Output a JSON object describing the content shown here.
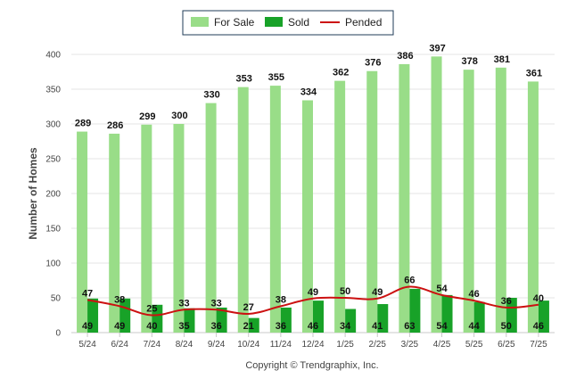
{
  "chart_data": {
    "type": "bar",
    "categories": [
      "5/24",
      "6/24",
      "7/24",
      "8/24",
      "9/24",
      "10/24",
      "11/24",
      "12/24",
      "1/25",
      "2/25",
      "3/25",
      "4/25",
      "5/25",
      "6/25",
      "7/25"
    ],
    "series": [
      {
        "name": "For Sale",
        "kind": "bar",
        "color": "#99dd88",
        "values": [
          289,
          286,
          299,
          300,
          330,
          353,
          355,
          334,
          362,
          376,
          386,
          397,
          378,
          381,
          361
        ]
      },
      {
        "name": "Sold",
        "kind": "bar",
        "color": "#18a228",
        "values": [
          49,
          49,
          40,
          35,
          36,
          21,
          36,
          46,
          34,
          41,
          63,
          54,
          44,
          50,
          46
        ]
      },
      {
        "name": "Pended",
        "kind": "line",
        "color": "#cc1111",
        "values": [
          47,
          38,
          25,
          33,
          33,
          27,
          38,
          49,
          50,
          49,
          66,
          54,
          46,
          36,
          40
        ]
      }
    ],
    "ylabel": "Number of Homes",
    "ylim": [
      0,
      400
    ],
    "yticks": [
      0,
      50,
      100,
      150,
      200,
      250,
      300,
      350,
      400
    ],
    "grid": true,
    "legend_position": "top-center"
  },
  "copyright": "Copyright © Trendgraphix, Inc."
}
